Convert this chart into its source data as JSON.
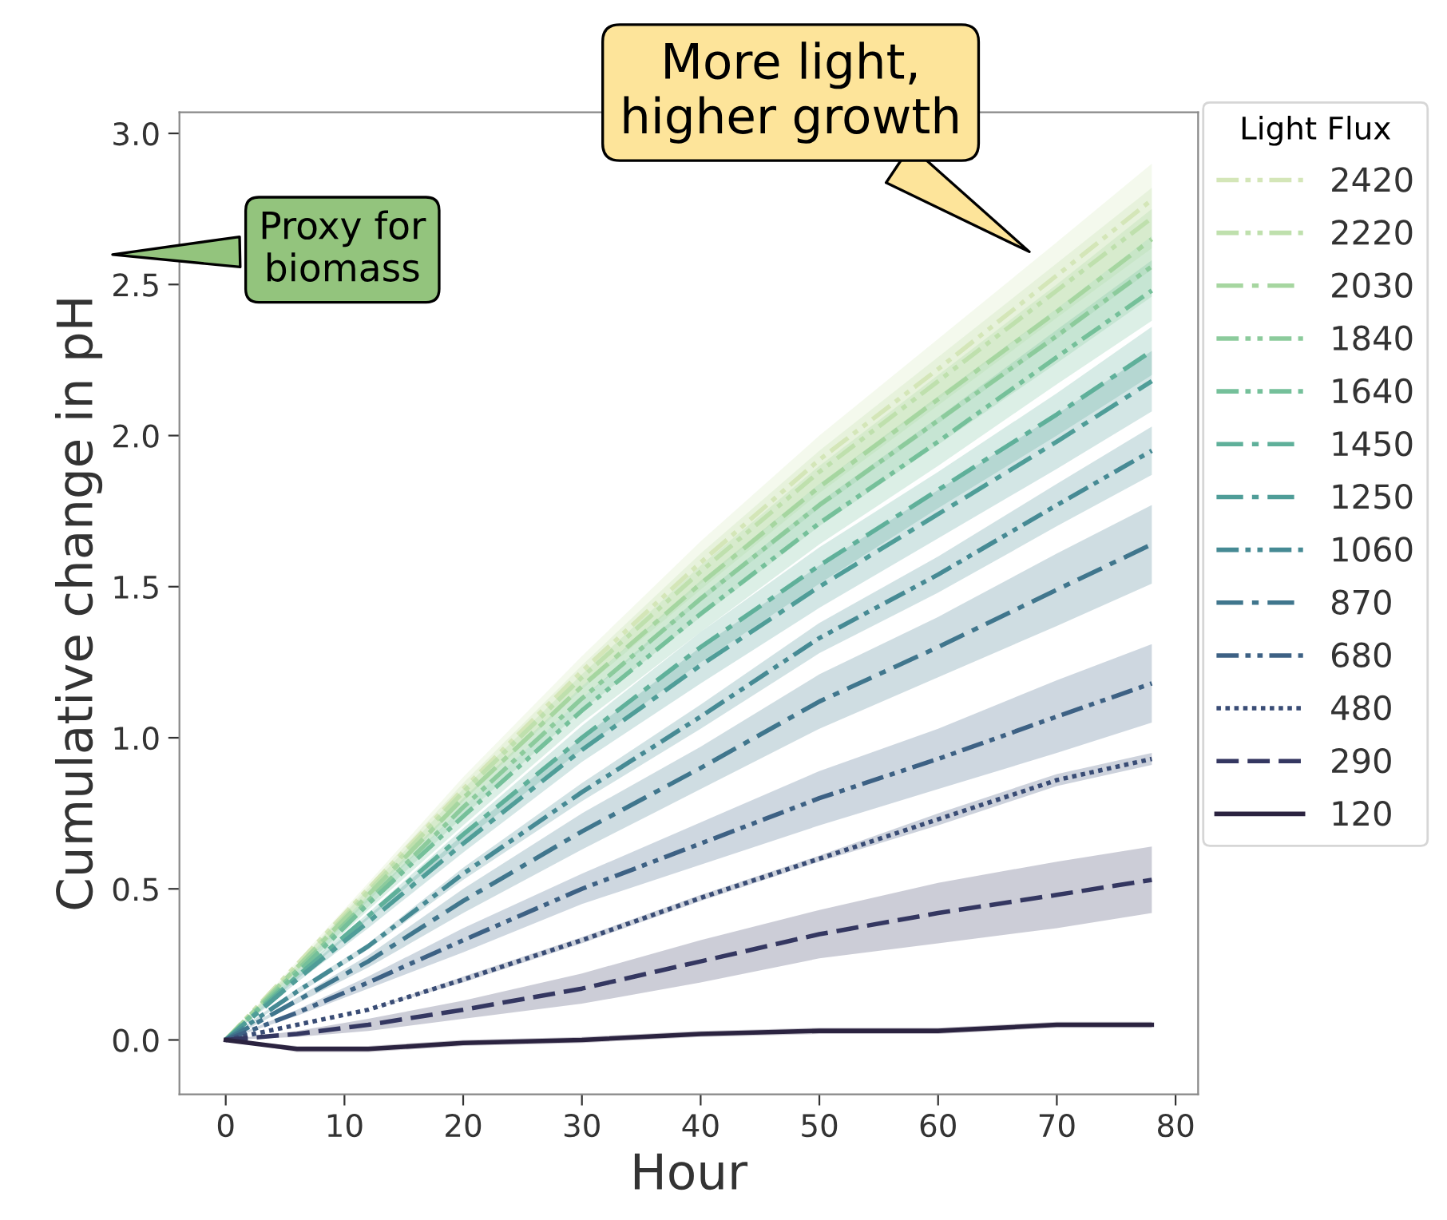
{
  "chart_data": {
    "type": "line",
    "xlabel": "Hour",
    "ylabel": "Cumulative change in pH",
    "legend_title": "Light Flux",
    "legend": "right",
    "grid": false,
    "x": [
      0,
      6,
      12,
      20,
      30,
      40,
      50,
      60,
      70,
      78
    ],
    "xlim": [
      -3.9,
      81.9
    ],
    "xticks": [
      0,
      10,
      20,
      30,
      40,
      50,
      60,
      70,
      80
    ],
    "ylim": [
      -0.18,
      3.07
    ],
    "yticks": [
      {
        "value": 0,
        "label": "0.0"
      },
      {
        "value": 0.5,
        "label": "0.5"
      },
      {
        "value": 1,
        "label": "1.0"
      },
      {
        "value": 1.5,
        "label": "1.5"
      },
      {
        "value": 2,
        "label": "2.0"
      },
      {
        "value": 2.5,
        "label": "2.5"
      },
      {
        "value": 3,
        "label": "3.0"
      }
    ],
    "series": [
      {
        "name": "2420",
        "color": "#d4e6b8",
        "line_style": "dashdotdot",
        "values": [
          0,
          0.25,
          0.5,
          0.83,
          1.22,
          1.58,
          1.92,
          2.22,
          2.53,
          2.78
        ],
        "lower": [
          0,
          0.24,
          0.48,
          0.79,
          1.17,
          1.51,
          1.84,
          2.12,
          2.42,
          2.66
        ],
        "upper": [
          0,
          0.26,
          0.52,
          0.87,
          1.27,
          1.65,
          2.0,
          2.32,
          2.64,
          2.9
        ]
      },
      {
        "name": "2220",
        "color": "#bfe0ad",
        "line_style": "dashdotdot",
        "values": [
          0,
          0.24,
          0.49,
          0.82,
          1.2,
          1.55,
          1.88,
          2.18,
          2.48,
          2.72
        ],
        "lower": [
          0,
          0.23,
          0.47,
          0.79,
          1.16,
          1.49,
          1.81,
          2.1,
          2.39,
          2.62
        ],
        "upper": [
          0,
          0.25,
          0.51,
          0.85,
          1.24,
          1.61,
          1.95,
          2.26,
          2.57,
          2.82
        ]
      },
      {
        "name": "2030",
        "color": "#a6d6a0",
        "line_style": "dashdot",
        "values": [
          0,
          0.24,
          0.48,
          0.8,
          1.17,
          1.51,
          1.83,
          2.12,
          2.41,
          2.65
        ],
        "lower": [
          0,
          0.23,
          0.46,
          0.77,
          1.13,
          1.45,
          1.76,
          2.04,
          2.32,
          2.55
        ],
        "upper": [
          0,
          0.25,
          0.5,
          0.83,
          1.21,
          1.57,
          1.9,
          2.2,
          2.5,
          2.75
        ]
      },
      {
        "name": "1840",
        "color": "#8ccb9c",
        "line_style": "dashdotdot",
        "values": [
          0,
          0.23,
          0.46,
          0.77,
          1.13,
          1.46,
          1.77,
          2.05,
          2.33,
          2.56
        ],
        "lower": [
          0,
          0.22,
          0.44,
          0.74,
          1.09,
          1.4,
          1.7,
          1.97,
          2.24,
          2.46
        ],
        "upper": [
          0,
          0.24,
          0.48,
          0.8,
          1.17,
          1.52,
          1.84,
          2.13,
          2.42,
          2.66
        ]
      },
      {
        "name": "1640",
        "color": "#75c09a",
        "line_style": "dashdotdot",
        "values": [
          0,
          0.22,
          0.45,
          0.74,
          1.09,
          1.41,
          1.71,
          1.98,
          2.26,
          2.48
        ],
        "lower": [
          0,
          0.21,
          0.43,
          0.71,
          1.05,
          1.35,
          1.64,
          1.9,
          2.17,
          2.38
        ],
        "upper": [
          0,
          0.23,
          0.47,
          0.77,
          1.13,
          1.47,
          1.78,
          2.06,
          2.35,
          2.58
        ]
      },
      {
        "name": "1450",
        "color": "#5fb09a",
        "line_style": "dashdot",
        "values": [
          0,
          0.21,
          0.41,
          0.68,
          1.0,
          1.3,
          1.57,
          1.82,
          2.07,
          2.28
        ],
        "lower": [
          0,
          0.2,
          0.4,
          0.66,
          0.96,
          1.25,
          1.51,
          1.76,
          2.0,
          2.2
        ],
        "upper": [
          0,
          0.22,
          0.42,
          0.7,
          1.04,
          1.35,
          1.63,
          1.88,
          2.14,
          2.36
        ]
      },
      {
        "name": "1250",
        "color": "#4f9d98",
        "line_style": "dashdot",
        "values": [
          0,
          0.2,
          0.39,
          0.65,
          0.96,
          1.24,
          1.5,
          1.74,
          1.98,
          2.18
        ],
        "lower": [
          0,
          0.19,
          0.37,
          0.62,
          0.92,
          1.18,
          1.43,
          1.66,
          1.89,
          2.08
        ],
        "upper": [
          0,
          0.21,
          0.41,
          0.68,
          1.0,
          1.3,
          1.57,
          1.82,
          2.07,
          2.28
        ]
      },
      {
        "name": "1060",
        "color": "#468a94",
        "line_style": "dashdotdot",
        "values": [
          0,
          0.16,
          0.31,
          0.55,
          0.82,
          1.07,
          1.33,
          1.54,
          1.77,
          1.95
        ],
        "lower": [
          0,
          0.15,
          0.3,
          0.53,
          0.79,
          1.03,
          1.28,
          1.48,
          1.7,
          1.87
        ],
        "upper": [
          0,
          0.17,
          0.32,
          0.57,
          0.85,
          1.11,
          1.38,
          1.6,
          1.84,
          2.03
        ]
      },
      {
        "name": "870",
        "color": "#40768d",
        "line_style": "dashdot",
        "values": [
          0,
          0.13,
          0.26,
          0.46,
          0.69,
          0.9,
          1.12,
          1.3,
          1.49,
          1.64
        ],
        "lower": [
          0,
          0.12,
          0.24,
          0.42,
          0.63,
          0.83,
          1.03,
          1.2,
          1.37,
          1.51
        ],
        "upper": [
          0,
          0.14,
          0.28,
          0.5,
          0.75,
          0.97,
          1.21,
          1.4,
          1.61,
          1.77
        ]
      },
      {
        "name": "680",
        "color": "#3d6184",
        "line_style": "dashdotdot",
        "values": [
          0,
          0.09,
          0.19,
          0.33,
          0.5,
          0.65,
          0.8,
          0.93,
          1.07,
          1.18
        ],
        "lower": [
          0,
          0.08,
          0.17,
          0.29,
          0.45,
          0.58,
          0.71,
          0.83,
          0.95,
          1.05
        ],
        "upper": [
          0,
          0.1,
          0.21,
          0.37,
          0.55,
          0.72,
          0.89,
          1.03,
          1.19,
          1.31
        ]
      },
      {
        "name": "480",
        "color": "#394c75",
        "line_style": "dotted",
        "values": [
          0,
          0.05,
          0.1,
          0.2,
          0.33,
          0.47,
          0.6,
          0.73,
          0.86,
          0.93
        ],
        "lower": [
          0,
          0.05,
          0.1,
          0.19,
          0.32,
          0.46,
          0.59,
          0.71,
          0.84,
          0.91
        ],
        "upper": [
          0,
          0.05,
          0.1,
          0.21,
          0.34,
          0.48,
          0.61,
          0.75,
          0.88,
          0.95
        ]
      },
      {
        "name": "290",
        "color": "#343761",
        "line_style": "dashed",
        "values": [
          0,
          0.02,
          0.05,
          0.1,
          0.17,
          0.26,
          0.35,
          0.42,
          0.48,
          0.53
        ],
        "lower": [
          0,
          0.01,
          0.03,
          0.07,
          0.12,
          0.19,
          0.27,
          0.32,
          0.37,
          0.42
        ],
        "upper": [
          0,
          0.03,
          0.07,
          0.13,
          0.22,
          0.33,
          0.43,
          0.52,
          0.59,
          0.64
        ]
      },
      {
        "name": "120",
        "color": "#2b2340",
        "line_style": "solid",
        "values": [
          0,
          -0.03,
          -0.03,
          -0.01,
          0.0,
          0.02,
          0.03,
          0.03,
          0.05,
          0.05
        ],
        "lower": [
          0,
          -0.04,
          -0.04,
          -0.02,
          -0.01,
          0.01,
          0.02,
          0.02,
          0.04,
          0.04
        ],
        "upper": [
          0,
          -0.02,
          -0.02,
          0.0,
          0.01,
          0.03,
          0.04,
          0.04,
          0.06,
          0.06
        ]
      }
    ],
    "annotations": [
      {
        "text": "More light,\nhigher growth",
        "x": 68,
        "y": 2.6
      },
      "Proxy for\nbiomass"
    ]
  }
}
